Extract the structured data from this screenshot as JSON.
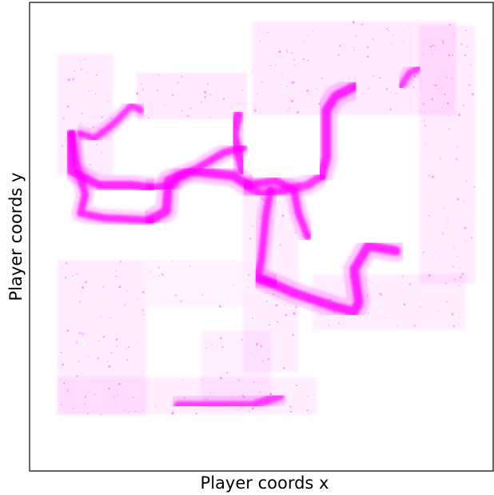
{
  "chart_data": {
    "type": "heatmap",
    "title": "",
    "xlabel": "Player coords x",
    "ylabel": "Player coords y",
    "xlim": [
      0,
      1
    ],
    "ylim": [
      0,
      1
    ],
    "x_ticks": [],
    "y_ticks": [],
    "grid": false,
    "legend": "none",
    "colors": {
      "density": "#ff00ff",
      "background": "#ffffff",
      "frame": "#000000"
    },
    "description_note": "",
    "paths": [
      {
        "name": "",
        "width": 0.018,
        "density": 0.95,
        "points": [
          [
            0.09,
            0.72
          ],
          [
            0.09,
            0.64
          ],
          [
            0.15,
            0.61
          ],
          [
            0.22,
            0.61
          ],
          [
            0.26,
            0.605
          ]
        ]
      },
      {
        "name": "",
        "width": 0.016,
        "density": 0.9,
        "points": [
          [
            0.26,
            0.605
          ],
          [
            0.31,
            0.61
          ],
          [
            0.32,
            0.63
          ],
          [
            0.36,
            0.645
          ],
          [
            0.42,
            0.68
          ],
          [
            0.46,
            0.69
          ]
        ]
      },
      {
        "name": "",
        "width": 0.016,
        "density": 0.9,
        "points": [
          [
            0.09,
            0.72
          ],
          [
            0.1,
            0.66
          ],
          [
            0.12,
            0.59
          ],
          [
            0.11,
            0.55
          ],
          [
            0.16,
            0.54
          ],
          [
            0.26,
            0.535
          ]
        ]
      },
      {
        "name": "",
        "width": 0.02,
        "density": 0.95,
        "points": [
          [
            0.26,
            0.535
          ],
          [
            0.295,
            0.555
          ],
          [
            0.3,
            0.62
          ],
          [
            0.35,
            0.64
          ],
          [
            0.44,
            0.63
          ],
          [
            0.47,
            0.61
          ]
        ]
      },
      {
        "name": "",
        "width": 0.018,
        "density": 0.85,
        "points": [
          [
            0.47,
            0.61
          ],
          [
            0.5,
            0.59
          ],
          [
            0.55,
            0.6
          ],
          [
            0.6,
            0.61
          ],
          [
            0.63,
            0.63
          ]
        ]
      },
      {
        "name": "",
        "width": 0.02,
        "density": 0.95,
        "points": [
          [
            0.63,
            0.63
          ],
          [
            0.64,
            0.67
          ],
          [
            0.64,
            0.74
          ],
          [
            0.64,
            0.77
          ],
          [
            0.66,
            0.8
          ],
          [
            0.7,
            0.82
          ]
        ]
      },
      {
        "name": "",
        "width": 0.016,
        "density": 0.9,
        "points": [
          [
            0.47,
            0.61
          ],
          [
            0.53,
            0.62
          ],
          [
            0.57,
            0.6
          ],
          [
            0.58,
            0.55
          ],
          [
            0.6,
            0.5
          ]
        ]
      },
      {
        "name": "",
        "width": 0.016,
        "density": 0.9,
        "points": [
          [
            0.52,
            0.6
          ],
          [
            0.51,
            0.55
          ],
          [
            0.5,
            0.45
          ],
          [
            0.49,
            0.41
          ],
          [
            0.53,
            0.4
          ]
        ]
      },
      {
        "name": "",
        "width": 0.02,
        "density": 0.95,
        "points": [
          [
            0.5,
            0.41
          ],
          [
            0.57,
            0.38
          ],
          [
            0.66,
            0.35
          ],
          [
            0.7,
            0.34
          ],
          [
            0.71,
            0.36
          ],
          [
            0.7,
            0.43
          ],
          [
            0.73,
            0.48
          ],
          [
            0.79,
            0.47
          ]
        ]
      },
      {
        "name": "",
        "width": 0.012,
        "density": 0.8,
        "points": [
          [
            0.16,
            0.54
          ],
          [
            0.16,
            0.48
          ],
          [
            0.16,
            0.42
          ]
        ]
      },
      {
        "name": "",
        "width": 0.02,
        "density": 0.9,
        "points": [
          [
            0.45,
            0.76
          ],
          [
            0.44,
            0.72
          ],
          [
            0.45,
            0.68
          ],
          [
            0.46,
            0.64
          ]
        ]
      },
      {
        "name": "",
        "width": 0.014,
        "density": 0.85,
        "points": [
          [
            0.24,
            0.77
          ],
          [
            0.22,
            0.78
          ],
          [
            0.18,
            0.74
          ],
          [
            0.14,
            0.71
          ],
          [
            0.11,
            0.72
          ]
        ]
      },
      {
        "name": "",
        "width": 0.018,
        "density": 0.8,
        "points": [
          [
            0.32,
            0.14
          ],
          [
            0.4,
            0.14
          ],
          [
            0.48,
            0.14
          ],
          [
            0.54,
            0.16
          ]
        ]
      },
      {
        "name": "",
        "width": 0.014,
        "density": 0.8,
        "points": [
          [
            0.8,
            0.82
          ],
          [
            0.82,
            0.85
          ],
          [
            0.84,
            0.86
          ]
        ]
      }
    ],
    "regions": [
      {
        "name": "",
        "density": 0.35,
        "bounds": [
          [
            0.06,
            0.63
          ],
          [
            0.18,
            0.89
          ]
        ]
      },
      {
        "name": "",
        "density": 0.35,
        "bounds": [
          [
            0.06,
            0.12
          ],
          [
            0.25,
            0.45
          ]
        ]
      },
      {
        "name": "",
        "density": 0.3,
        "bounds": [
          [
            0.06,
            0.12
          ],
          [
            0.62,
            0.2
          ]
        ]
      },
      {
        "name": "",
        "density": 0.28,
        "bounds": [
          [
            0.37,
            0.13
          ],
          [
            0.52,
            0.3
          ]
        ]
      },
      {
        "name": "",
        "density": 0.4,
        "bounds": [
          [
            0.48,
            0.76
          ],
          [
            0.92,
            0.96
          ]
        ]
      },
      {
        "name": "",
        "density": 0.4,
        "bounds": [
          [
            0.23,
            0.75
          ],
          [
            0.47,
            0.85
          ]
        ]
      },
      {
        "name": "",
        "density": 0.3,
        "bounds": [
          [
            0.61,
            0.3
          ],
          [
            0.94,
            0.42
          ]
        ]
      },
      {
        "name": "",
        "density": 0.35,
        "bounds": [
          [
            0.84,
            0.4
          ],
          [
            0.96,
            0.95
          ]
        ]
      },
      {
        "name": "",
        "density": 0.3,
        "bounds": [
          [
            0.46,
            0.21
          ],
          [
            0.58,
            0.62
          ]
        ]
      },
      {
        "name": "",
        "density": 0.22,
        "bounds": [
          [
            0.25,
            0.35
          ],
          [
            0.46,
            0.45
          ]
        ]
      }
    ]
  }
}
